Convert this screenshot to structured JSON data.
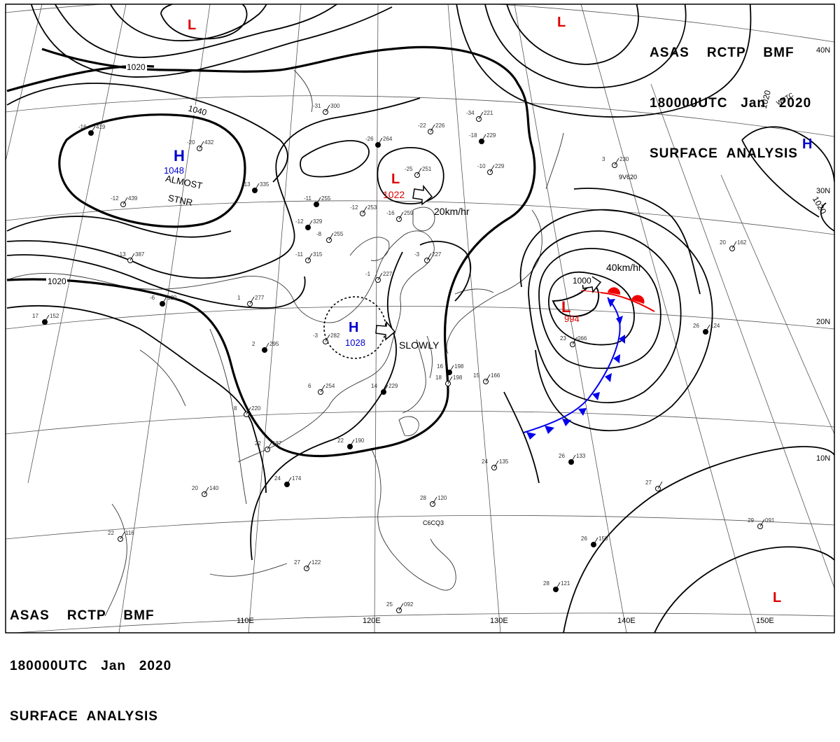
{
  "header_top": {
    "line1": "ASAS    RCTP    BMF",
    "line2": "180000UTC   Jan   2020",
    "line3": "SURFACE  ANALYSIS"
  },
  "header_bottom": {
    "line1": "ASAS    RCTP    BMF",
    "line2": "180000UTC   Jan   2020",
    "line3": "SURFACE  ANALYSIS"
  },
  "grid_labels": {
    "lon": [
      "110E",
      "120E",
      "130E",
      "140E",
      "150E"
    ],
    "lat": [
      "40N",
      "30N",
      "20N",
      "10N"
    ]
  },
  "isobar_labels": [
    "1020",
    "1040",
    "1020",
    "1000",
    "1020"
  ],
  "pressure_systems": [
    {
      "type": "H",
      "value": "1048",
      "note": "ALMOST STNR",
      "color": "#0000cc"
    },
    {
      "type": "L",
      "value": "1022",
      "motion": "20km/hr",
      "color": "#dd0000"
    },
    {
      "type": "H",
      "value": "1028",
      "motion": "SLOWLY",
      "color": "#0000cc"
    },
    {
      "type": "L",
      "value": "994",
      "motion": "40km/hr",
      "color": "#dd0000"
    },
    {
      "type": "L",
      "value": "",
      "color": "#dd0000"
    },
    {
      "type": "L",
      "value": "",
      "color": "#dd0000"
    },
    {
      "type": "H",
      "value": "",
      "color": "#0000cc"
    },
    {
      "type": "L",
      "value": "",
      "color": "#dd0000"
    }
  ],
  "fronts": {
    "cold_color": "#0000ee",
    "warm_color": "#ee0000",
    "occluded": true
  },
  "station_plots": [
    {
      "t": "-16",
      "p": "419"
    },
    {
      "t": "-20",
      "p": "432"
    },
    {
      "t": "-31",
      "p": "300"
    },
    {
      "t": "-26",
      "p": "264"
    },
    {
      "t": "-22",
      "p": "226"
    },
    {
      "t": "-25",
      "p": "251"
    },
    {
      "t": "-11",
      "p": "255"
    },
    {
      "t": "-12",
      "p": "253"
    },
    {
      "t": "-16",
      "p": "259"
    },
    {
      "t": "-12",
      "p": "329"
    },
    {
      "t": "-11",
      "p": "315"
    },
    {
      "t": "-8",
      "p": "255"
    },
    {
      "t": "-13",
      "p": "335"
    },
    {
      "t": "-12",
      "p": "439"
    },
    {
      "t": "-13",
      "p": "387"
    },
    {
      "t": "-6",
      "p": "120"
    },
    {
      "t": "-3",
      "p": "282"
    },
    {
      "t": "1",
      "p": "277"
    },
    {
      "t": "2",
      "p": "295"
    },
    {
      "t": "6",
      "p": "254"
    },
    {
      "t": "8",
      "p": "220"
    },
    {
      "t": "14",
      "p": "229"
    },
    {
      "t": "-1",
      "p": "227"
    },
    {
      "t": "-3",
      "p": "227"
    },
    {
      "t": "-18",
      "p": "229"
    },
    {
      "t": "-10",
      "p": "229"
    },
    {
      "t": "-34",
      "p": "221"
    },
    {
      "t": "17",
      "p": "152"
    },
    {
      "t": "22",
      "p": "187"
    },
    {
      "t": "20",
      "p": "140"
    },
    {
      "t": "24",
      "p": "174"
    },
    {
      "t": "22",
      "p": "116"
    },
    {
      "t": "27",
      "p": "122"
    },
    {
      "t": "22",
      "p": "190"
    },
    {
      "t": "28",
      "p": "120"
    },
    {
      "t": "24",
      "p": "135"
    },
    {
      "t": "26",
      "p": "133"
    },
    {
      "t": "27",
      "p": ""
    },
    {
      "t": "29",
      "p": "091"
    },
    {
      "t": "28",
      "p": "121"
    },
    {
      "t": "25",
      "p": "092"
    },
    {
      "t": "20",
      "p": "162"
    },
    {
      "t": "26",
      "p": "124"
    },
    {
      "t": "23",
      "p": "066"
    },
    {
      "t": "3",
      "p": "230"
    },
    {
      "t": "16",
      "p": "198"
    },
    {
      "t": "15",
      "p": "166"
    },
    {
      "t": "18",
      "p": "198"
    },
    {
      "t": "26",
      "p": "150"
    }
  ],
  "ship_ids": [
    "9V620",
    "C6CQ3",
    "WPTC"
  ]
}
